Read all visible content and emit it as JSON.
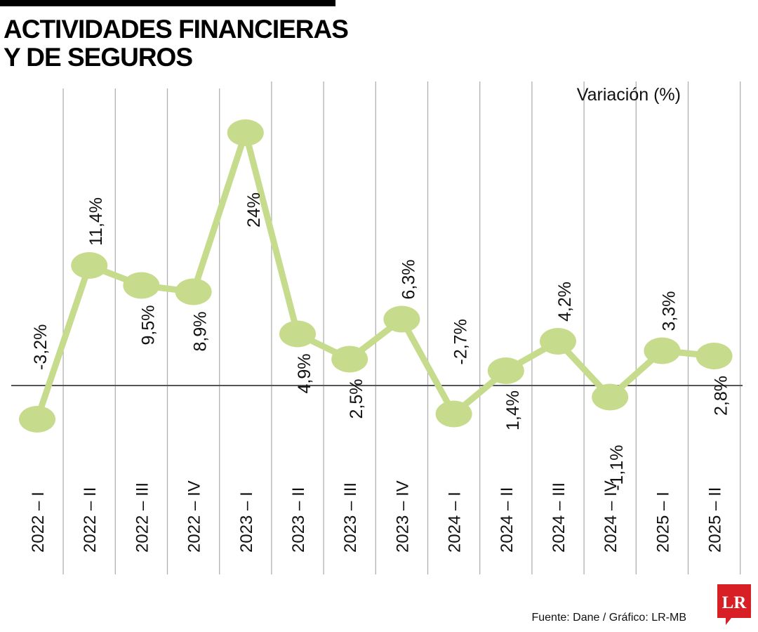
{
  "header": {
    "title_line1": "ACTIVIDADES FINANCIERAS",
    "title_line2": "Y DE SEGUROS"
  },
  "chart_data": {
    "type": "line",
    "title": "ACTIVIDADES FINANCIERAS Y DE SEGUROS",
    "ylabel": "Variación (%)",
    "xlabel": "",
    "categories": [
      "2022 – I",
      "2022 – II",
      "2022 – III",
      "2022 – IV",
      "2023 – I",
      "2023 – II",
      "2023 – III",
      "2023 – IV",
      "2024 – I",
      "2024 – II",
      "2024 – III",
      "2024 – IV",
      "2025 – I",
      "2025 – II"
    ],
    "series": [
      {
        "name": "Variación (%)",
        "values": [
          -3.2,
          11.4,
          9.5,
          8.9,
          24,
          4.9,
          2.5,
          6.3,
          -2.7,
          1.4,
          4.2,
          -1.1,
          3.3,
          2.8
        ],
        "labels": [
          "-3,2%",
          "11,4%",
          "9,5%",
          "8,9%",
          "24%",
          "4,9%",
          "2,5%",
          "6,3%",
          "-2,7%",
          "1,4%",
          "4,2%",
          "-1,1%",
          "3,3%",
          "2,8%"
        ]
      }
    ],
    "ylim": [
      -5,
      26
    ],
    "zero_line": true,
    "grid": "vertical",
    "colors": {
      "line": "#c6db8b",
      "axis": "#555555",
      "grid": "#b0b0b0",
      "text": "#111111"
    }
  },
  "footer": {
    "source": "Fuente: Dane / Gráfico: LR-MB",
    "logo_text": "LR",
    "logo_color": "#d81f26"
  }
}
